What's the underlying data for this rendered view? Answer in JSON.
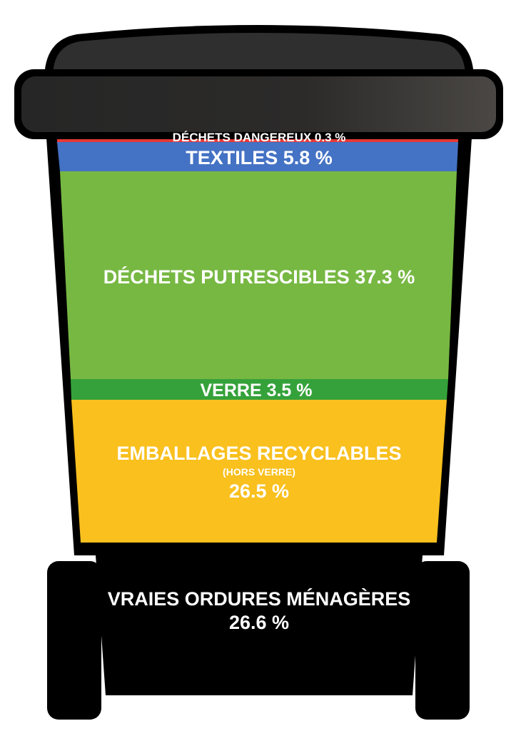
{
  "segments": [
    {
      "key": "dangerous",
      "label": "DÉCHETS DANGEREUX 0.3 %",
      "value": 0.3,
      "color": "#e53935"
    },
    {
      "key": "textiles",
      "label": "TEXTILES 5.8 %",
      "value": 5.8,
      "color": "#4472c4"
    },
    {
      "key": "putrescible",
      "label": "DÉCHETS PUTRESCIBLES 37.3 %",
      "value": 37.3,
      "color": "#77b843"
    },
    {
      "key": "glass",
      "label": "VERRE 3.5 %",
      "value": 3.5,
      "color": "#35a13a"
    },
    {
      "key": "packaging",
      "label": "EMBALLAGES RECYCLABLES",
      "sublabel": "(HORS VERRE)",
      "value_label": "26.5 %",
      "value": 26.5,
      "color": "#f9c01e"
    },
    {
      "key": "residual",
      "label": "VRAIES ORDURES MÉNAGÈRES",
      "value_label": "26.6 %",
      "value": 26.6,
      "color": "#000000"
    }
  ],
  "colors": {
    "lid": "#2f2f2f",
    "lid_highlight": "#4a4744",
    "outline": "#000000"
  }
}
